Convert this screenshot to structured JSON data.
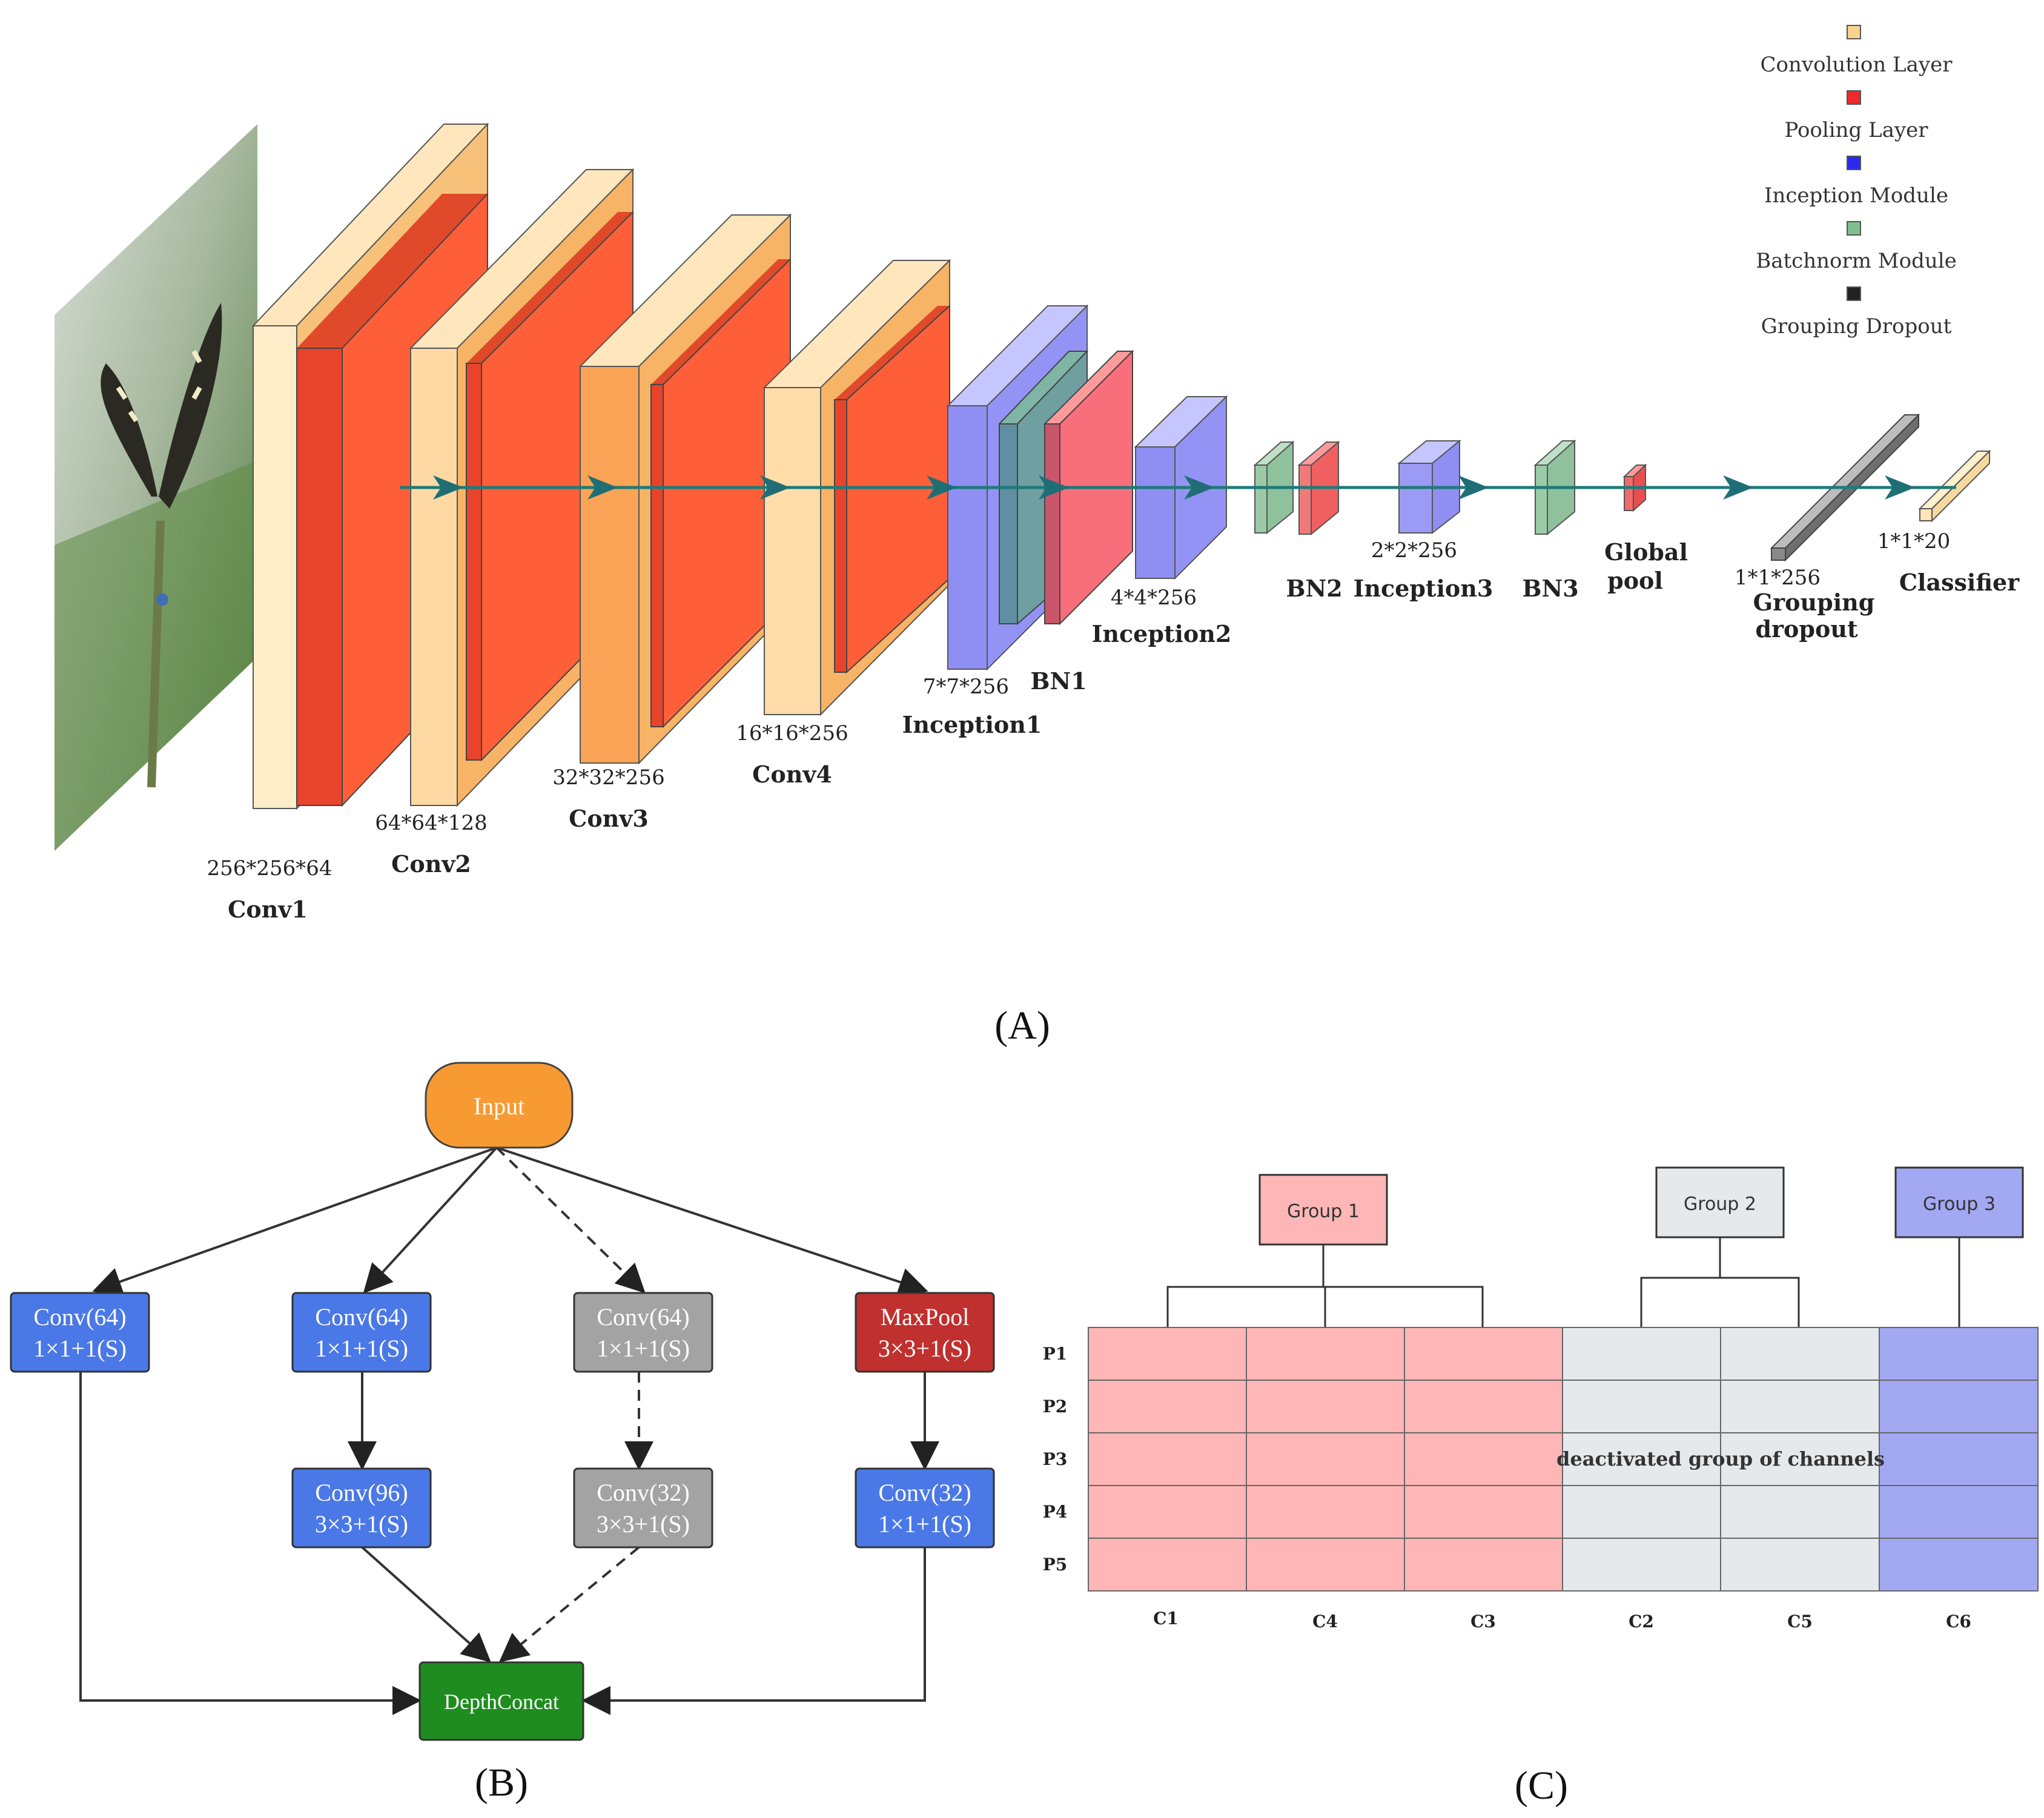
{
  "panel_a": {
    "caption": "(A)",
    "legend": [
      {
        "label": "Convolution Layer",
        "color": "#fbd38c"
      },
      {
        "label": "Pooling Layer",
        "color": "#ee2a2a"
      },
      {
        "label": "Inception Module",
        "color": "#2a2aee"
      },
      {
        "label": "Batchnorm Module",
        "color": "#7fbf8f"
      },
      {
        "label": "Grouping Dropout",
        "color": "#222222"
      }
    ],
    "layers": [
      {
        "name": "Conv1",
        "dims": "256*256*64"
      },
      {
        "name": "Conv2",
        "dims": "64*64*128"
      },
      {
        "name": "Conv3",
        "dims": "32*32*256"
      },
      {
        "name": "Conv4",
        "dims": "16*16*256"
      },
      {
        "name": "Inception1",
        "dims": "7*7*256"
      },
      {
        "name": "BN1",
        "dims": ""
      },
      {
        "name": "Inception2",
        "dims": "4*4*256"
      },
      {
        "name": "BN2",
        "dims": ""
      },
      {
        "name": "Inception3",
        "dims": "2*2*256"
      },
      {
        "name": "BN3",
        "dims": ""
      },
      {
        "name_line1": "Global",
        "name_line2": "pool"
      },
      {
        "name_line1": "Grouping",
        "name_line2": "dropout",
        "dims": "1*1*256"
      },
      {
        "name": "Classifier",
        "dims": "1*1*20"
      }
    ]
  },
  "panel_b": {
    "caption": "(B)",
    "input": "Input",
    "nodes": [
      {
        "line1": "Conv(64)",
        "line2": "1×1+1(S)"
      },
      {
        "line1": "Conv(64)",
        "line2": "1×1+1(S)"
      },
      {
        "line1": "Conv(64)",
        "line2": "1×1+1(S)"
      },
      {
        "line1": "MaxPool",
        "line2": "3×3+1(S)"
      },
      {
        "line1": "Conv(96)",
        "line2": "3×3+1(S)"
      },
      {
        "line1": "Conv(32)",
        "line2": "3×3+1(S)"
      },
      {
        "line1": "Conv(32)",
        "line2": "1×1+1(S)"
      }
    ],
    "output": "DepthConcat",
    "colors": {
      "input": "#f79a32",
      "conv": "#4a78e6",
      "dropped": "#a3a3a3",
      "pool": "#c0302e",
      "concat": "#1f8c1f"
    }
  },
  "panel_c": {
    "caption": "(C)",
    "groups": [
      "Group 1",
      "Group 2",
      "Group 3"
    ],
    "rows": [
      "P1",
      "P2",
      "P3",
      "P4",
      "P5"
    ],
    "columns": [
      "C1",
      "C4",
      "C3",
      "C2",
      "C5",
      "C6"
    ],
    "deactivated_label": "deactivated group of channels",
    "colors": {
      "group1": "#ffb6b6",
      "group2": "#e5e9ec",
      "group3": "#a3a8f3"
    }
  }
}
